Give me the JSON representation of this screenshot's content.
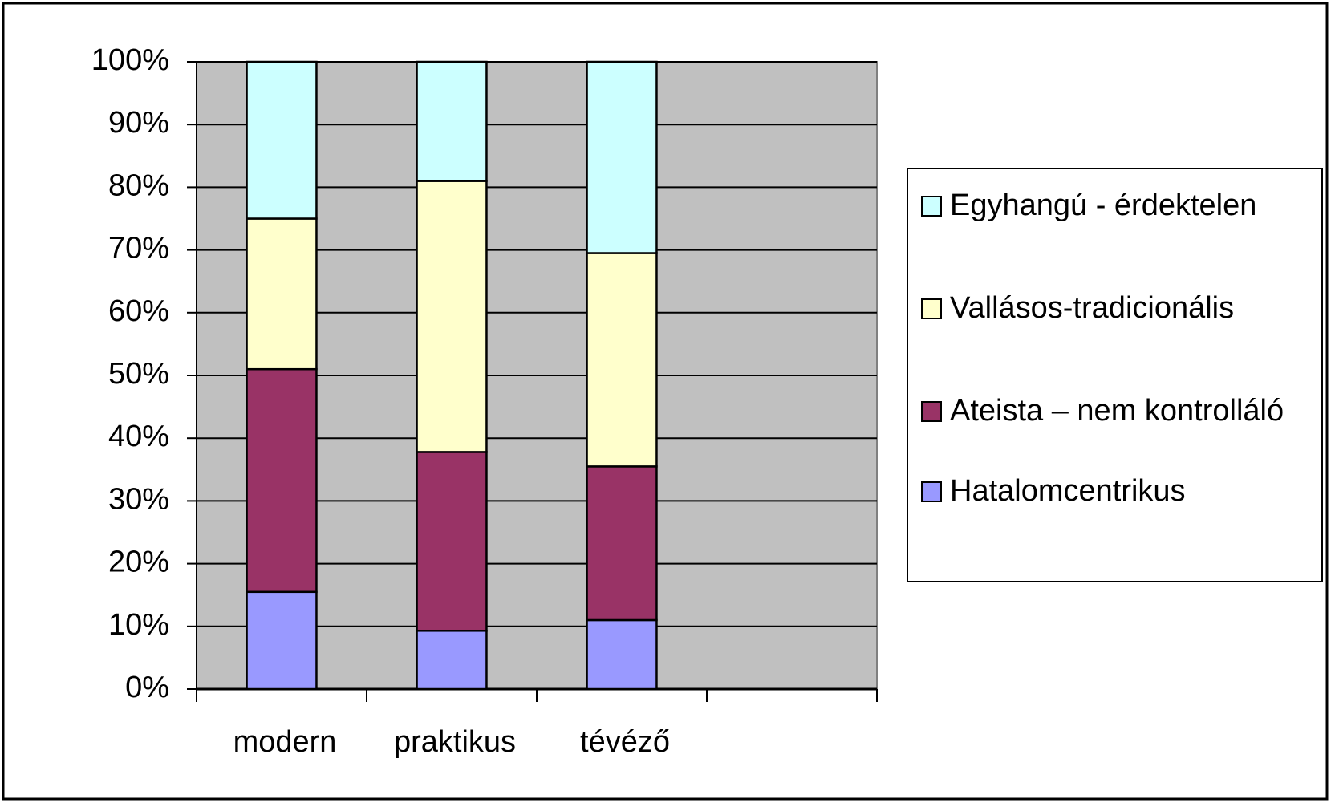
{
  "chart_data": {
    "type": "stacked_bar",
    "categories": [
      "modern",
      "praktikus",
      "tévéző",
      null
    ],
    "series": [
      {
        "name": "Hatalomcentrikus",
        "color": "#9999ff",
        "values": [
          15.5,
          9.3,
          11,
          null
        ]
      },
      {
        "name": "Ateista – nem kontrolláló",
        "color": "#993366",
        "values": [
          35.5,
          28.5,
          24.5,
          null
        ]
      },
      {
        "name": "Vallásos-tradicionális",
        "color": "#ffffcc",
        "values": [
          24,
          43.2,
          34,
          null
        ]
      },
      {
        "name": "Egyhangú - érdektelen",
        "color": "#ccffff",
        "values": [
          25,
          19,
          30.5,
          null
        ]
      }
    ],
    "ylim": [
      0,
      100
    ],
    "yticks": [
      {
        "value": 0,
        "label": "0%"
      },
      {
        "value": 10,
        "label": "10%"
      },
      {
        "value": 20,
        "label": "20%"
      },
      {
        "value": 30,
        "label": "30%"
      },
      {
        "value": 40,
        "label": "40%"
      },
      {
        "value": 50,
        "label": "50%"
      },
      {
        "value": 60,
        "label": "60%"
      },
      {
        "value": 70,
        "label": "70%"
      },
      {
        "value": 80,
        "label": "80%"
      },
      {
        "value": 90,
        "label": "90%"
      },
      {
        "value": 100,
        "label": "100%"
      }
    ],
    "grid": true,
    "plot_background": "#c0c0c0",
    "legend": "right"
  }
}
